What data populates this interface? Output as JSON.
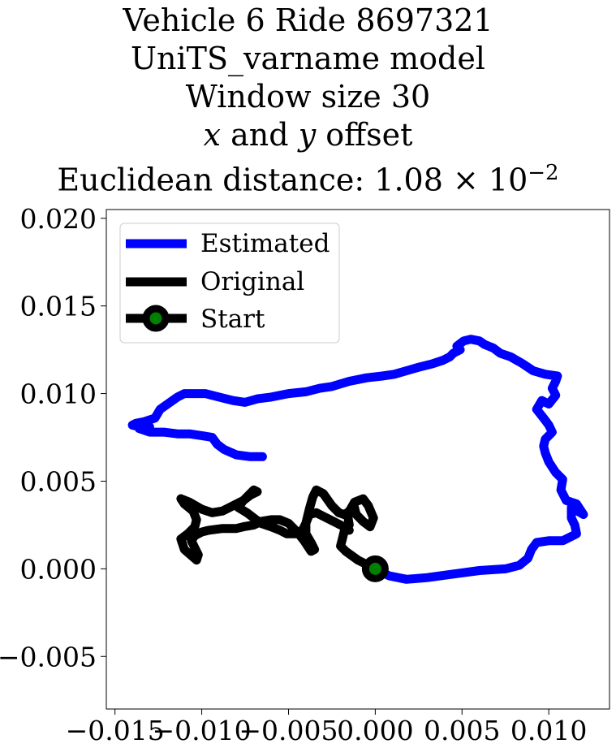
{
  "chart_data": {
    "type": "line",
    "title_lines": [
      "Vehicle 6 Ride 8697321",
      "UniTS_varname model",
      "Window size 30"
    ],
    "title_offset": {
      "x": "x",
      "and": " and ",
      "y": "y",
      "rest": " offset"
    },
    "title_distance": {
      "prefix": "Euclidean distance: ",
      "mantissa": "1.08",
      "times": " × 10",
      "exponent": "−2"
    },
    "xlim": [
      -0.0155,
      0.0135
    ],
    "ylim": [
      -0.008,
      0.0205
    ],
    "x_ticks": [
      -0.015,
      -0.01,
      -0.005,
      0.0,
      0.005,
      0.01
    ],
    "x_tick_labels": [
      "−0.015",
      "−0.010",
      "−0.005",
      "0.000",
      "0.005",
      "0.010"
    ],
    "y_ticks": [
      -0.005,
      0.0,
      0.005,
      0.01,
      0.015,
      0.02
    ],
    "y_tick_labels": [
      "−0.005",
      "0.000",
      "0.005",
      "0.010",
      "0.015",
      "0.020"
    ],
    "legend": {
      "position": "upper-left",
      "items": [
        "Estimated",
        "Original",
        "Start"
      ]
    },
    "series": [
      {
        "name": "Estimated",
        "color": "#0000ff",
        "x": [
          0.0,
          0.0008,
          0.0018,
          0.003,
          0.0045,
          0.006,
          0.0075,
          0.0083,
          0.0088,
          0.009,
          0.0093,
          0.01,
          0.0108,
          0.0114,
          0.0116,
          0.0115,
          0.0113,
          0.0113,
          0.012,
          0.0116,
          0.011,
          0.0107,
          0.0108,
          0.0104,
          0.01,
          0.0098,
          0.0097,
          0.0098,
          0.0102,
          0.01,
          0.0097,
          0.0093,
          0.0096,
          0.01,
          0.0104,
          0.0102,
          0.0104,
          0.0105,
          0.0098,
          0.0091,
          0.0085,
          0.0078,
          0.0072,
          0.0068,
          0.0063,
          0.006,
          0.0055,
          0.0051,
          0.0047,
          0.0049,
          0.0045,
          0.0043,
          0.0039,
          0.0033,
          0.0025,
          0.0018,
          0.0011,
          0.0004,
          -0.0005,
          -0.0015,
          -0.0025,
          -0.0032,
          -0.004,
          -0.005,
          -0.006,
          -0.0068,
          -0.0075,
          -0.0082,
          -0.009,
          -0.0098,
          -0.0105,
          -0.011,
          -0.0114,
          -0.0124,
          -0.0127,
          -0.0133,
          -0.0138,
          -0.014,
          -0.0136,
          -0.013,
          -0.0136,
          -0.013,
          -0.0122,
          -0.0114,
          -0.0107,
          -0.01,
          -0.0094,
          -0.0091,
          -0.0087,
          -0.008,
          -0.0072,
          -0.0065
        ],
        "y": [
          0.0,
          -0.0004,
          -0.0006,
          -0.0005,
          -0.0003,
          -0.0001,
          0.0,
          0.0002,
          0.0006,
          0.0011,
          0.0015,
          0.0016,
          0.0016,
          0.0019,
          0.002,
          0.0025,
          0.0029,
          0.0035,
          0.0031,
          0.0037,
          0.0039,
          0.0045,
          0.0051,
          0.0055,
          0.0061,
          0.0066,
          0.007,
          0.0074,
          0.0078,
          0.0082,
          0.0086,
          0.0091,
          0.0096,
          0.0094,
          0.0099,
          0.0103,
          0.0107,
          0.011,
          0.0111,
          0.0113,
          0.0117,
          0.0121,
          0.0123,
          0.0126,
          0.0128,
          0.013,
          0.0131,
          0.013,
          0.0127,
          0.0125,
          0.0123,
          0.0121,
          0.0119,
          0.0117,
          0.0115,
          0.0113,
          0.0111,
          0.011,
          0.0109,
          0.0107,
          0.0104,
          0.0103,
          0.0101,
          0.01,
          0.0098,
          0.0097,
          0.0095,
          0.0096,
          0.0098,
          0.01,
          0.01,
          0.01,
          0.0098,
          0.0091,
          0.0086,
          0.0084,
          0.0083,
          0.0082,
          0.0081,
          0.0081,
          0.008,
          0.0078,
          0.0078,
          0.0077,
          0.0077,
          0.0076,
          0.0075,
          0.0071,
          0.0068,
          0.0065,
          0.0064,
          0.0064
        ]
      },
      {
        "name": "Original",
        "color": "#000000",
        "x": [
          0.0,
          -0.001,
          -0.0017,
          -0.002,
          -0.0019,
          -0.0018,
          -0.0015,
          -0.0016,
          -0.0012,
          -0.0007,
          -0.0004,
          -0.0001,
          -0.0003,
          -0.0007,
          -0.0011,
          -0.0012,
          -0.0014,
          -0.0016,
          -0.0018,
          -0.0021,
          -0.0025,
          -0.003,
          -0.0034,
          -0.0036,
          -0.0038,
          -0.004,
          -0.004,
          -0.0037,
          -0.0035,
          -0.0037,
          -0.0041,
          -0.0045,
          -0.005,
          -0.0055,
          -0.006,
          -0.0066,
          -0.007,
          -0.0076,
          -0.008,
          -0.0088,
          -0.0096,
          -0.01,
          -0.0104,
          -0.0106,
          -0.0104,
          -0.0102,
          -0.0103,
          -0.011,
          -0.0112,
          -0.0108,
          -0.0104,
          -0.0103,
          -0.0105,
          -0.011,
          -0.0112,
          -0.0107,
          -0.01,
          -0.0094,
          -0.0088,
          -0.0082,
          -0.0076,
          -0.0072,
          -0.007,
          -0.0068,
          -0.0072,
          -0.0076,
          -0.0079,
          -0.0074,
          -0.007,
          -0.0066,
          -0.006,
          -0.0055,
          -0.0051,
          -0.0046,
          -0.0042,
          -0.004,
          -0.0038,
          -0.0034,
          -0.003,
          -0.0024,
          -0.0018,
          -0.0015
        ],
        "y": [
          0.0,
          0.0005,
          0.001,
          0.0013,
          0.0017,
          0.0021,
          0.0025,
          0.0031,
          0.0038,
          0.004,
          0.0036,
          0.0029,
          0.0024,
          0.0027,
          0.0031,
          0.0035,
          0.0034,
          0.0032,
          0.0031,
          0.0032,
          0.0036,
          0.0043,
          0.0045,
          0.0041,
          0.0034,
          0.0026,
          0.002,
          0.0015,
          0.0011,
          0.001,
          0.0016,
          0.0021,
          0.0026,
          0.0028,
          0.0028,
          0.0027,
          0.0025,
          0.0024,
          0.0023,
          0.0023,
          0.0022,
          0.0021,
          0.0019,
          0.0016,
          0.0012,
          0.0008,
          0.0005,
          0.0011,
          0.0017,
          0.002,
          0.0024,
          0.0028,
          0.0033,
          0.0037,
          0.004,
          0.0038,
          0.0034,
          0.0032,
          0.0033,
          0.0036,
          0.0039,
          0.0043,
          0.0045,
          0.0044,
          0.0042,
          0.0039,
          0.0035,
          0.0032,
          0.0029,
          0.0026,
          0.0024,
          0.0022,
          0.002,
          0.002,
          0.0022,
          0.0026,
          0.0031,
          0.0032,
          0.003,
          0.0027,
          0.0024,
          0.0022
        ]
      }
    ],
    "start_point": {
      "x": 0.0,
      "y": 0.0,
      "face_color": "#008000",
      "edge_color": "#000000"
    }
  }
}
